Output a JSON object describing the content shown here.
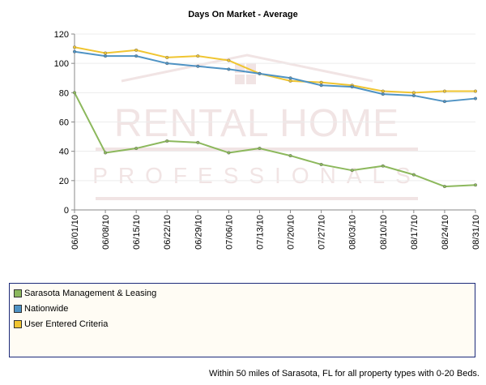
{
  "chart_data": {
    "type": "line",
    "title": "Days On Market - Average",
    "xlabel": "",
    "ylabel": "",
    "categories": [
      "06/01/10",
      "06/08/10",
      "06/15/10",
      "06/22/10",
      "06/29/10",
      "07/06/10",
      "07/13/10",
      "07/20/10",
      "07/27/10",
      "08/03/10",
      "08/10/10",
      "08/17/10",
      "08/24/10",
      "08/31/10"
    ],
    "ylim": [
      0,
      120
    ],
    "yticks": [
      "0",
      "20",
      "40",
      "60",
      "80",
      "100",
      "120"
    ],
    "grid": true,
    "legend_position": "bottom",
    "series": [
      {
        "name": "Sarasota Management & Leasing",
        "color": "#8cb85c",
        "values": [
          80,
          39,
          42,
          47,
          46,
          39,
          42,
          37,
          31,
          27,
          30,
          24,
          16,
          17
        ]
      },
      {
        "name": "Nationwide",
        "color": "#4f93c4",
        "values": [
          108,
          105,
          105,
          100,
          98,
          96,
          93,
          90,
          85,
          84,
          79,
          78,
          74,
          76
        ]
      },
      {
        "name": "User Entered Criteria",
        "color": "#f0c531",
        "values": [
          111,
          107,
          109,
          104,
          105,
          102,
          93,
          88,
          87,
          85,
          81,
          80,
          81,
          81
        ]
      }
    ]
  },
  "watermark": {
    "line1": "RENTAL HOME",
    "line2": "PROFESSIONALS"
  },
  "footnote": "Within 50 miles of Sarasota, FL for all property types with 0-20 Beds."
}
